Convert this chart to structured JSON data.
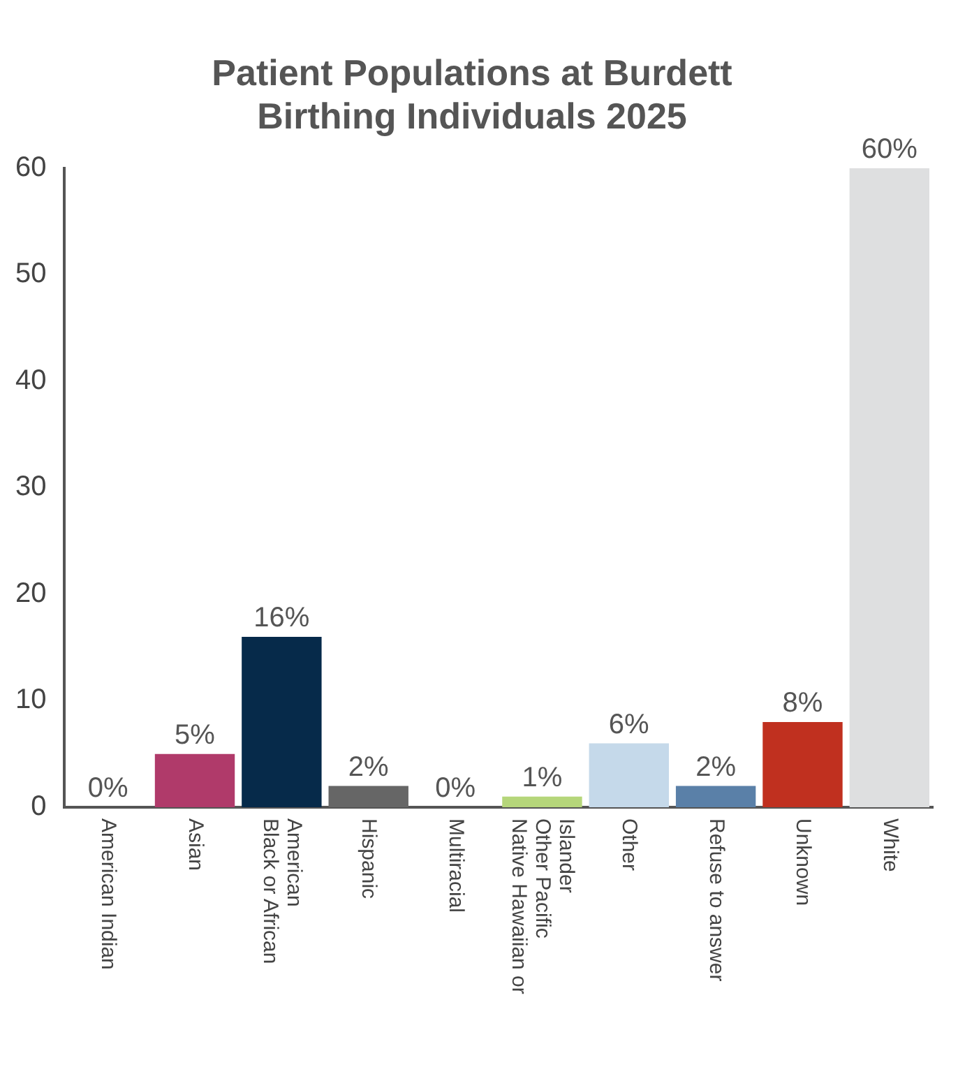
{
  "chart_data": {
    "type": "bar",
    "title": "Patient Populations at Burdett Birthing Individuals 2025",
    "categories": [
      "American Indian",
      "Asian",
      "Black or African American",
      "Hispanic",
      "Multiracial",
      "Native Hawaiian or Other Pacific Islander",
      "Other",
      "Refuse to answer",
      "Unknown",
      "White"
    ],
    "values": [
      0,
      5,
      16,
      2,
      0,
      1,
      6,
      2,
      8,
      60
    ],
    "colors": [
      "#6b2d5c",
      "#b03a6a",
      "#062a4a",
      "#666666",
      "#555555",
      "#b5d67a",
      "#c5d9ea",
      "#5a80a8",
      "#c0301f",
      "#dedfe0"
    ],
    "value_labels": [
      "0%",
      "5%",
      "16%",
      "2%",
      "0%",
      "1%",
      "6%",
      "2%",
      "8%",
      "60%"
    ],
    "ylim": [
      0,
      60
    ],
    "yticks": [
      0,
      10,
      20,
      30,
      40,
      50,
      60
    ],
    "grid": false,
    "legend": false
  }
}
